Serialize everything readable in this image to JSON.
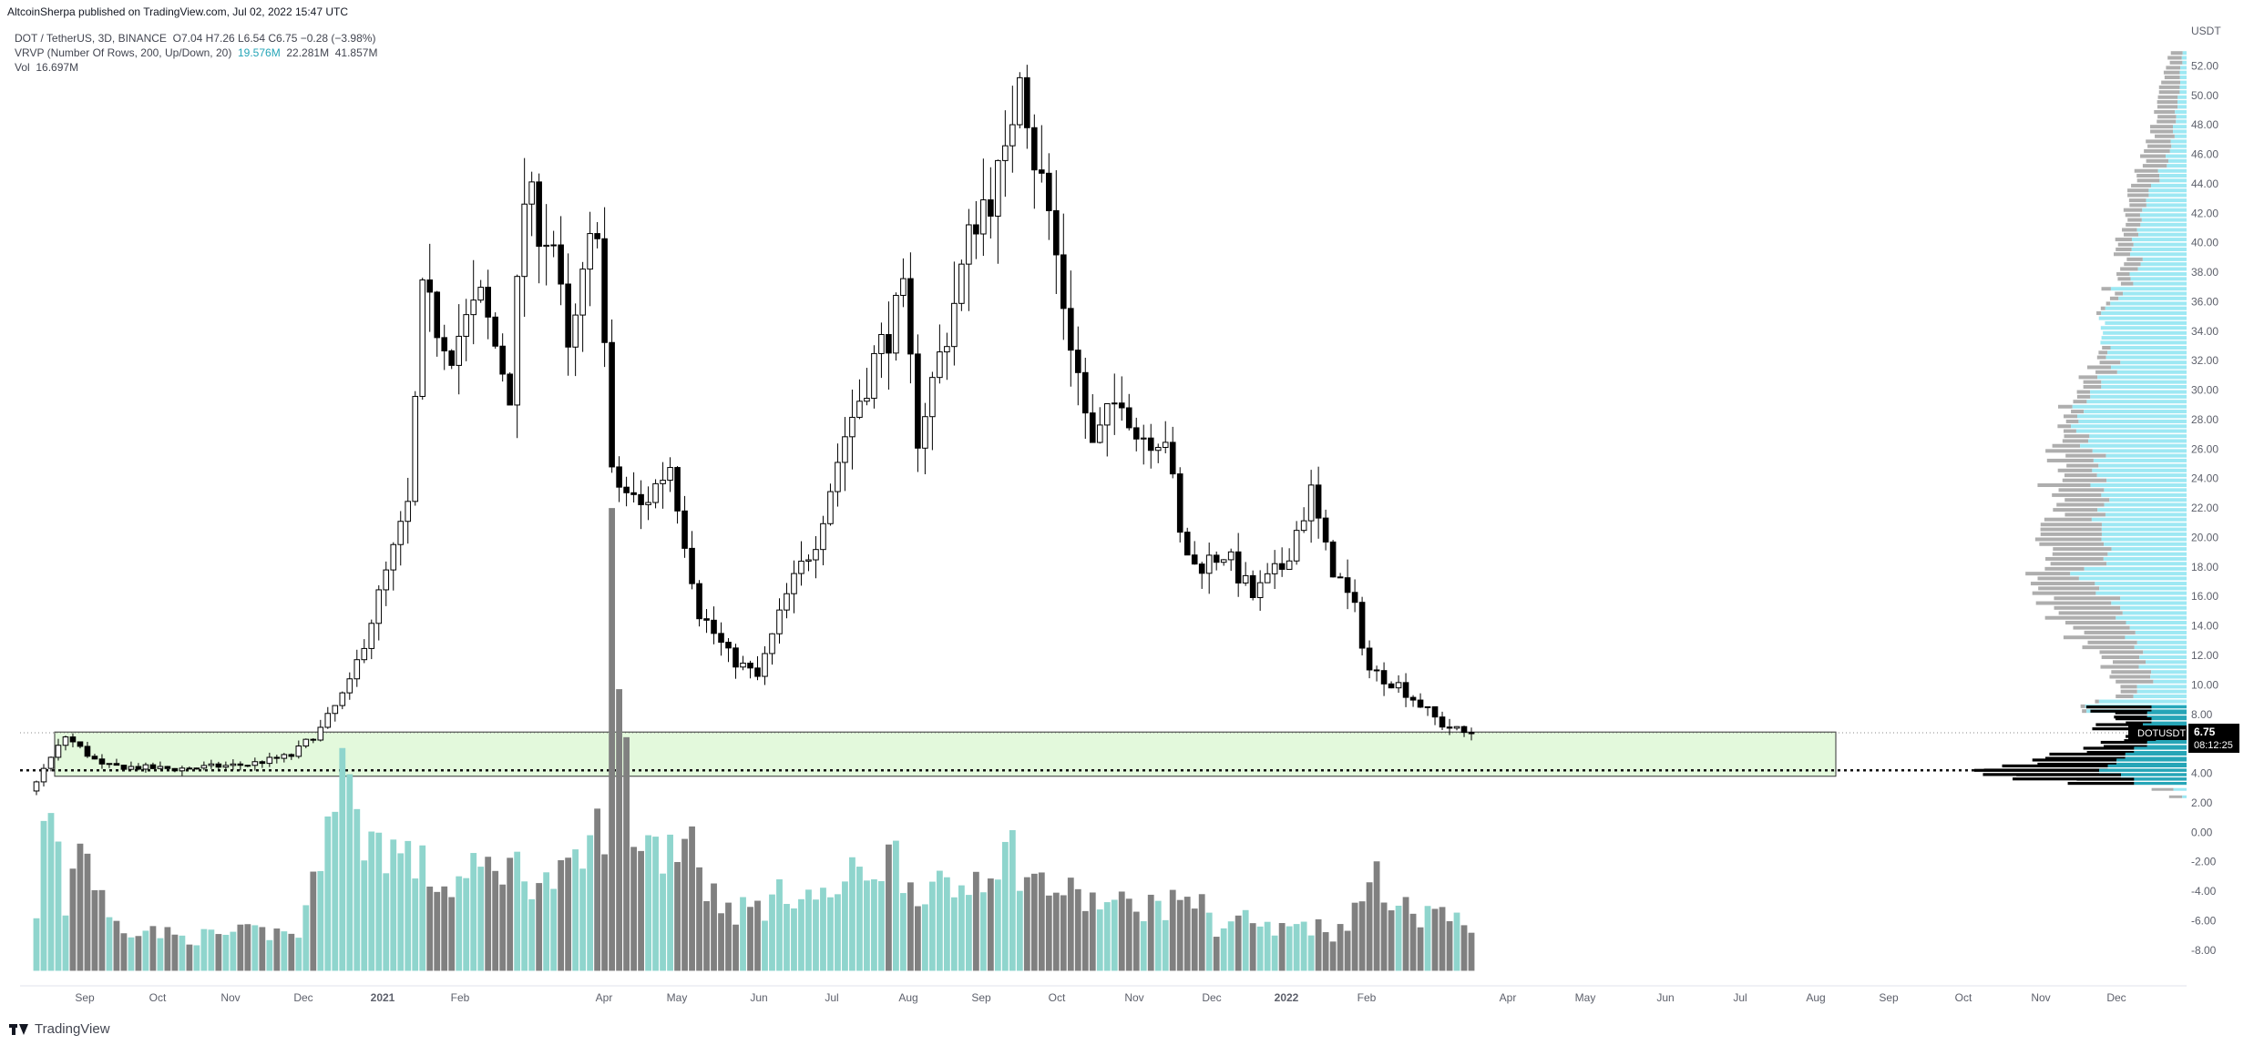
{
  "header": {
    "published_by": "AltcoinSherpa published on TradingView.com, Jul 02, 2022 15:47 UTC",
    "symbol_line": "DOT / TetherUS, 3D, BINANCE",
    "ohlc": "O7.04  H7.26  L6.54  C6.75  −0.28 (−3.98%)",
    "vrvp_label": "VRVP (Number Of Rows, 200, Up/Down, 20)",
    "vrvp_up": "19.576M",
    "vrvp_down": "22.281M",
    "vrvp_total": "41.857M",
    "vol_label": "Vol",
    "vol_value": "16.697M"
  },
  "footer": {
    "brand": "TradingView"
  },
  "chart_data": {
    "type": "candlestick",
    "pair": "DOTUSDT",
    "interval": "3D",
    "currency_label": "USDT",
    "y_ticks": [
      52,
      50,
      48,
      46,
      44,
      42,
      40,
      38,
      36,
      34,
      32,
      30,
      28,
      26,
      24,
      22,
      20,
      18,
      16,
      14,
      12,
      10,
      8,
      6,
      4,
      2,
      0,
      -2,
      -4,
      -6,
      -8
    ],
    "y_tick_labels": [
      "52.00",
      "50.00",
      "48.00",
      "46.00",
      "44.00",
      "42.00",
      "40.00",
      "38.00",
      "36.00",
      "34.00",
      "32.00",
      "30.00",
      "28.00",
      "26.00",
      "24.00",
      "22.00",
      "20.00",
      "18.00",
      "16.00",
      "14.00",
      "12.00",
      "10.00",
      "8.00",
      "6.00",
      "4.00",
      "2.00",
      "0.00",
      "-2.00",
      "-4.00",
      "-6.00",
      "-8.00"
    ],
    "ylim": [
      -9,
      54
    ],
    "x_month_labels": [
      "Sep",
      "Oct",
      "Nov",
      "Dec",
      "2021",
      "Feb",
      "Apr",
      "May",
      "Jun",
      "Jul",
      "Aug",
      "Sep",
      "Oct",
      "Nov",
      "Dec",
      "2022",
      "Feb",
      "Apr",
      "May",
      "Jun",
      "Jul",
      "Aug",
      "Sep",
      "Oct",
      "Nov",
      "Dec"
    ],
    "x_label_bold": [
      "2021",
      "2022"
    ],
    "price_label": {
      "symbol": "DOTUSDT",
      "price": "6.75",
      "countdown": "08:12:25"
    },
    "last_price": 6.75,
    "support_zone": {
      "top": 6.8,
      "bottom": 3.8,
      "dotted_level": 4.2
    },
    "price_keyframes": [
      [
        0,
        2.8
      ],
      [
        5,
        6.5
      ],
      [
        10,
        4.5
      ],
      [
        20,
        4.3
      ],
      [
        30,
        4.6
      ],
      [
        36,
        5.2
      ],
      [
        40,
        7.0
      ],
      [
        44,
        10.0
      ],
      [
        48,
        16.0
      ],
      [
        52,
        22.0
      ],
      [
        54,
        36.0
      ],
      [
        58,
        33.0
      ],
      [
        62,
        36.0
      ],
      [
        66,
        30.0
      ],
      [
        68,
        43.0
      ],
      [
        72,
        40.0
      ],
      [
        74,
        32.0
      ],
      [
        78,
        42.0
      ],
      [
        80,
        24.0
      ],
      [
        84,
        22.0
      ],
      [
        88,
        25.0
      ],
      [
        92,
        15.0
      ],
      [
        96,
        12.0
      ],
      [
        100,
        10.5
      ],
      [
        104,
        16.0
      ],
      [
        108,
        20.0
      ],
      [
        112,
        27.0
      ],
      [
        116,
        32.0
      ],
      [
        120,
        36.0
      ],
      [
        122,
        27.0
      ],
      [
        126,
        34.0
      ],
      [
        130,
        42.0
      ],
      [
        134,
        45.0
      ],
      [
        136,
        53.0
      ],
      [
        138,
        46.0
      ],
      [
        140,
        42.0
      ],
      [
        142,
        36.0
      ],
      [
        146,
        26.0
      ],
      [
        150,
        30.0
      ],
      [
        152,
        27.0
      ],
      [
        156,
        27.0
      ],
      [
        158,
        20.0
      ],
      [
        160,
        18.0
      ],
      [
        164,
        19.0
      ],
      [
        168,
        16.0
      ],
      [
        172,
        18.0
      ],
      [
        176,
        23.0
      ],
      [
        178,
        19.0
      ],
      [
        182,
        15.0
      ],
      [
        184,
        11.0
      ],
      [
        188,
        10.0
      ],
      [
        194,
        7.3
      ],
      [
        197,
        6.75
      ]
    ],
    "volume_keyframes": [
      [
        0,
        1.0
      ],
      [
        2,
        3.4
      ],
      [
        4,
        1.2
      ],
      [
        6,
        2.5
      ],
      [
        10,
        0.9
      ],
      [
        20,
        0.6
      ],
      [
        30,
        0.7
      ],
      [
        36,
        0.7
      ],
      [
        38,
        1.5
      ],
      [
        40,
        3.3
      ],
      [
        42,
        3.9
      ],
      [
        44,
        2.6
      ],
      [
        48,
        2.3
      ],
      [
        52,
        2.0
      ],
      [
        56,
        1.5
      ],
      [
        64,
        2.0
      ],
      [
        70,
        1.6
      ],
      [
        74,
        1.8
      ],
      [
        78,
        2.8
      ],
      [
        79,
        7.2
      ],
      [
        80,
        5.0
      ],
      [
        82,
        2.6
      ],
      [
        86,
        2.2
      ],
      [
        90,
        2.7
      ],
      [
        92,
        1.5
      ],
      [
        96,
        1.1
      ],
      [
        100,
        1.2
      ],
      [
        104,
        1.5
      ],
      [
        108,
        1.3
      ],
      [
        112,
        1.7
      ],
      [
        116,
        2.0
      ],
      [
        118,
        2.1
      ],
      [
        120,
        1.6
      ],
      [
        126,
        1.4
      ],
      [
        130,
        1.9
      ],
      [
        134,
        2.2
      ],
      [
        136,
        1.7
      ],
      [
        140,
        1.5
      ],
      [
        144,
        1.3
      ],
      [
        148,
        1.2
      ],
      [
        152,
        1.2
      ],
      [
        156,
        1.2
      ],
      [
        158,
        1.5
      ],
      [
        162,
        0.8
      ],
      [
        166,
        1.0
      ],
      [
        170,
        0.7
      ],
      [
        174,
        0.9
      ],
      [
        178,
        0.7
      ],
      [
        182,
        1.2
      ],
      [
        184,
        2.0
      ],
      [
        186,
        1.3
      ],
      [
        190,
        1.0
      ],
      [
        192,
        1.3
      ],
      [
        194,
        0.9
      ],
      [
        197,
        0.8
      ]
    ],
    "volume_profile": {
      "rows": [
        [
          53.0,
          0.4,
          0.1
        ],
        [
          52.0,
          0.5,
          0.15
        ],
        [
          51.0,
          0.6,
          0.15
        ],
        [
          50.0,
          0.65,
          0.2
        ],
        [
          49.0,
          0.7,
          0.25
        ],
        [
          48.0,
          0.8,
          0.3
        ],
        [
          47.0,
          0.9,
          0.35
        ],
        [
          46.0,
          1.0,
          0.45
        ],
        [
          45.0,
          1.1,
          0.6
        ],
        [
          44.0,
          1.25,
          0.8
        ],
        [
          43.0,
          1.35,
          0.95
        ],
        [
          42.0,
          1.45,
          1.1
        ],
        [
          41.0,
          1.5,
          1.15
        ],
        [
          40.0,
          1.55,
          1.2
        ],
        [
          39.0,
          1.5,
          1.1
        ],
        [
          38.0,
          1.6,
          1.3
        ],
        [
          37.0,
          1.8,
          1.6
        ],
        [
          36.0,
          1.9,
          1.8
        ],
        [
          35.0,
          2.0,
          2.0
        ],
        [
          34.0,
          1.95,
          2.0
        ],
        [
          33.0,
          2.0,
          1.8
        ],
        [
          32.0,
          2.1,
          1.6
        ],
        [
          31.0,
          2.3,
          1.9
        ],
        [
          30.0,
          2.5,
          2.2
        ],
        [
          29.0,
          2.7,
          2.4
        ],
        [
          28.0,
          2.9,
          2.6
        ],
        [
          27.0,
          2.9,
          2.3
        ],
        [
          26.0,
          3.0,
          2.0
        ],
        [
          25.0,
          3.0,
          2.2
        ],
        [
          24.0,
          3.1,
          2.0
        ],
        [
          23.0,
          3.0,
          1.9
        ],
        [
          22.0,
          3.0,
          2.0
        ],
        [
          21.0,
          3.1,
          1.8
        ],
        [
          20.0,
          3.2,
          1.8
        ],
        [
          19.0,
          3.4,
          2.0
        ],
        [
          18.0,
          3.6,
          2.6
        ],
        [
          17.0,
          3.4,
          2.0
        ],
        [
          16.0,
          3.2,
          1.6
        ],
        [
          15.0,
          3.0,
          1.5
        ],
        [
          14.0,
          2.6,
          1.3
        ],
        [
          13.0,
          2.2,
          1.1
        ],
        [
          12.0,
          1.8,
          1.0
        ],
        [
          11.0,
          1.7,
          0.8
        ],
        [
          10.0,
          1.6,
          1.2
        ],
        [
          9.0,
          2.3,
          2.2
        ]
      ],
      "black_rows": [
        [
          8.6,
          2.2
        ],
        [
          8.2,
          1.8
        ],
        [
          7.8,
          1.5
        ],
        [
          7.4,
          2.0
        ],
        [
          7.0,
          1.2
        ],
        [
          6.6,
          1.3
        ],
        [
          6.2,
          1.8
        ],
        [
          5.8,
          2.4
        ],
        [
          5.4,
          3.0
        ],
        [
          5.0,
          3.6
        ],
        [
          4.6,
          4.3
        ],
        [
          4.3,
          4.8
        ],
        [
          4.0,
          3.8
        ],
        [
          3.7,
          2.6
        ]
      ],
      "black_cyan_rows": [
        [
          8.6,
          0.8
        ],
        [
          8.2,
          0.9
        ],
        [
          7.8,
          0.8
        ],
        [
          7.4,
          1.0
        ],
        [
          7.0,
          0.6
        ],
        [
          6.6,
          0.7
        ],
        [
          6.2,
          0.9
        ],
        [
          5.8,
          1.2
        ],
        [
          5.4,
          1.4
        ],
        [
          5.0,
          1.6
        ],
        [
          4.6,
          1.8
        ],
        [
          4.3,
          2.0
        ],
        [
          4.0,
          1.5
        ],
        [
          3.7,
          1.2
        ]
      ],
      "low_rows": [
        [
          3.0,
          0.8,
          0.3
        ],
        [
          2.5,
          0.4,
          0.1
        ]
      ]
    },
    "colors": {
      "up_candle": "#ffffff",
      "down_candle": "#000000",
      "vol_up": "#8fd5cd",
      "vol_down": "#808080",
      "profile_up": "#9de8f3",
      "profile_down": "#aeaeae",
      "support_zone": "#e3f9dc"
    }
  }
}
